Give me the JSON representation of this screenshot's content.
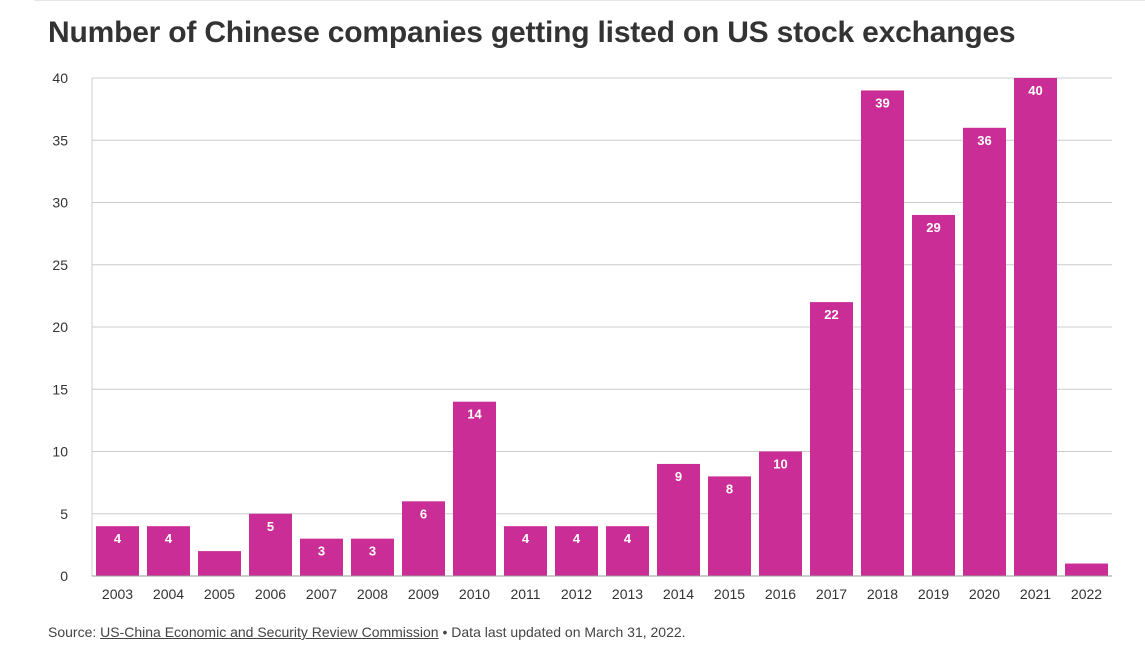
{
  "chart_data": {
    "type": "bar",
    "title": "Number of Chinese companies getting listed on US stock exchanges",
    "xlabel": "",
    "ylabel": "",
    "categories": [
      "2003",
      "2004",
      "2005",
      "2006",
      "2007",
      "2008",
      "2009",
      "2010",
      "2011",
      "2012",
      "2013",
      "2014",
      "2015",
      "2016",
      "2017",
      "2018",
      "2019",
      "2020",
      "2021",
      "2022"
    ],
    "values": [
      4,
      4,
      2,
      5,
      3,
      3,
      6,
      14,
      4,
      4,
      4,
      9,
      8,
      10,
      22,
      39,
      29,
      36,
      40,
      1
    ],
    "data_labels": [
      "4",
      "4",
      "",
      "5",
      "3",
      "3",
      "6",
      "14",
      "4",
      "4",
      "4",
      "9",
      "8",
      "10",
      "22",
      "39",
      "29",
      "36",
      "40",
      ""
    ],
    "ylim": [
      0,
      40
    ],
    "yticks": [
      0,
      5,
      10,
      15,
      20,
      25,
      30,
      35,
      40
    ],
    "grid": true,
    "bar_color": "#cb2d96"
  },
  "footer": {
    "source_prefix": "Source: ",
    "source_link": "US-China Economic and Security Review Commission",
    "note": " • Data last updated on March 31, 2022."
  }
}
